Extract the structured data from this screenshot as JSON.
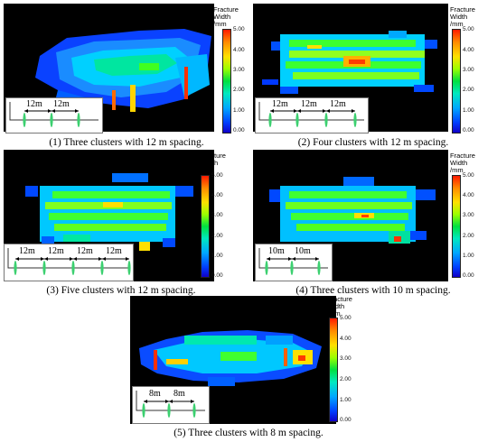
{
  "colorbar": {
    "title_line1": "Fracture Width",
    "title_line2": "/mm",
    "ticks": [
      "5.00",
      "4.00",
      "3.00",
      "2.00",
      "1.00",
      "0.00"
    ],
    "top_color": "#ff1a00",
    "bottom_color": "#1000c8"
  },
  "panels": [
    {
      "caption": "(1) Three clusters with 12 m spacing.",
      "spacings": [
        "12m",
        "12m"
      ]
    },
    {
      "caption": "(2) Four clusters with 12 m spacing.",
      "spacings": [
        "12m",
        "12m",
        "12m"
      ]
    },
    {
      "caption": "(3) Five clusters with 12 m spacing.",
      "spacings": [
        "12m",
        "12m",
        "12m",
        "12m"
      ]
    },
    {
      "caption": "(4) Three clusters with 10 m spacing.",
      "spacings": [
        "10m",
        "10m"
      ]
    },
    {
      "caption": "(5) Three clusters with 8 m spacing.",
      "spacings": [
        "8m",
        "8m"
      ]
    }
  ]
}
